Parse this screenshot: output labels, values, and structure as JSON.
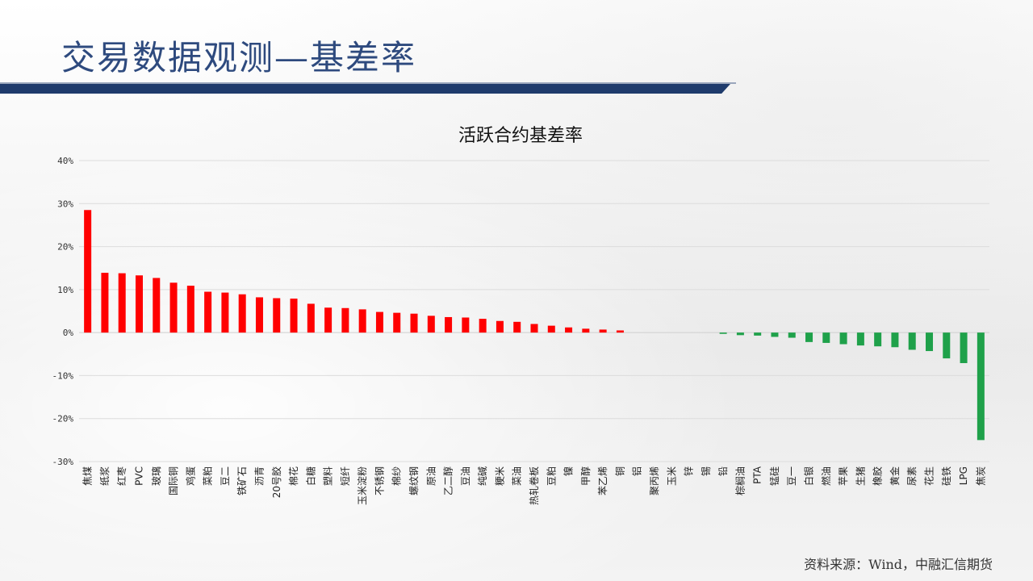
{
  "slide": {
    "title": "交易数据观测—基差率",
    "source": "资料来源：Wind，中融汇信期货"
  },
  "colors": {
    "positive": "#ff0000",
    "negative": "#1fa14a",
    "title": "#2e4a7e",
    "bar": "#1f3b6c"
  },
  "chart_data": {
    "type": "bar",
    "title": "活跃合约基差率",
    "xlabel": "",
    "ylabel": "",
    "ylim": [
      -30,
      40
    ],
    "yticks": [
      40,
      30,
      20,
      10,
      0,
      -10,
      -20,
      -30
    ],
    "ytick_labels": [
      "40%",
      "30%",
      "20%",
      "10%",
      "0%",
      "-10%",
      "-20%",
      "-30%"
    ],
    "grid": true,
    "legend": "none",
    "categories": [
      "焦煤",
      "纸浆",
      "红枣",
      "PVC",
      "玻璃",
      "国际铜",
      "鸡蛋",
      "菜粕",
      "豆二",
      "铁矿石",
      "沥青",
      "20号胶",
      "棉花",
      "白糖",
      "塑料",
      "短纤",
      "玉米淀粉",
      "不锈钢",
      "棉纱",
      "螺纹钢",
      "原油",
      "乙二醇",
      "豆油",
      "纯碱",
      "粳米",
      "菜油",
      "热轧卷板",
      "豆粕",
      "镍",
      "甲醇",
      "苯乙烯",
      "铜",
      "铝",
      "聚丙烯",
      "玉米",
      "锌",
      "锡",
      "铅",
      "棕榈油",
      "PTA",
      "锰硅",
      "豆一",
      "白银",
      "燃油",
      "苹果",
      "生猪",
      "橡胶",
      "黄金",
      "尿素",
      "花生",
      "硅铁",
      "LPG",
      "焦炭"
    ],
    "values": [
      28.5,
      13.9,
      13.8,
      13.3,
      12.7,
      11.6,
      10.9,
      9.5,
      9.3,
      8.9,
      8.2,
      8.0,
      7.9,
      6.7,
      5.8,
      5.7,
      5.4,
      4.8,
      4.6,
      4.4,
      3.9,
      3.6,
      3.5,
      3.2,
      2.7,
      2.5,
      2.0,
      1.6,
      1.2,
      0.9,
      0.7,
      0.5,
      0.0,
      0.0,
      0.0,
      0.0,
      0.0,
      -0.3,
      -0.6,
      -0.7,
      -1.0,
      -1.2,
      -2.2,
      -2.4,
      -2.7,
      -3.0,
      -3.2,
      -3.4,
      -4.0,
      -4.3,
      -6.0,
      -7.1,
      -25.0
    ]
  }
}
